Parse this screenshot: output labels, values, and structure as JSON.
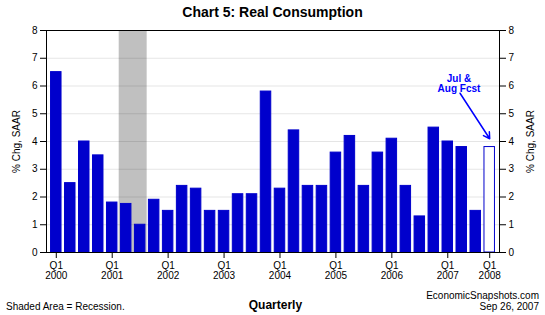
{
  "chart_data": {
    "type": "bar",
    "title": "Chart 5: Real Consumption",
    "xlabel": "Quarterly",
    "ylabel": "% Chg, SAAR",
    "y2label": "% Chg, SAAR",
    "footer_left": "Shaded Area = Recession.",
    "footer_right": "EconomicSnapshots.com\nSep 26, 2007",
    "categories": [
      "Q1\n2000",
      null,
      null,
      null,
      "Q1\n2001",
      null,
      null,
      null,
      "Q1\n2002",
      null,
      null,
      null,
      "Q1\n2003",
      null,
      null,
      null,
      "Q1\n2004",
      null,
      null,
      null,
      "Q1\n2005",
      null,
      null,
      null,
      "Q1\n2006",
      null,
      null,
      null,
      "Q1\n2007",
      null,
      null,
      "Q1\n2008"
    ],
    "values": [
      6.5,
      2.5,
      4.0,
      3.5,
      1.8,
      1.75,
      1.0,
      1.9,
      1.5,
      2.4,
      2.3,
      1.5,
      1.5,
      2.1,
      2.1,
      5.8,
      2.3,
      4.4,
      2.4,
      2.4,
      3.6,
      4.2,
      2.4,
      3.6,
      4.1,
      2.4,
      1.3,
      4.5,
      4.0,
      3.8,
      1.5,
      3.8
    ],
    "color": "#0000CC",
    "colors": [
      "#0000CC",
      "#0000CC",
      "#0000CC",
      "#0000CC",
      "#0000CC",
      "#0000CC",
      "#0000CC",
      "#0000CC",
      "#0000CC",
      "#0000CC",
      "#0000CC",
      "#0000CC",
      "#0000CC",
      "#0000CC",
      "#0000CC",
      "#0000CC",
      "#0000CC",
      "#0000CC",
      "#0000CC",
      "#0000CC",
      "#0000CC",
      "#0000CC",
      "#0000CC",
      "#0000CC",
      "#0000CC",
      "#0000CC",
      "#0000CC",
      "#0000CC",
      "#0000CC",
      "#0000CC",
      "#0000CC",
      "white"
    ],
    "shaded": {
      "start_index": 5,
      "end_index": 6,
      "color": "#C0C0C0"
    },
    "annotations": [
      {
        "text": "Jul &\nAug Fcst",
        "category_index": 31,
        "y": 4.1,
        "color": "blue"
      }
    ],
    "ylim": [
      0,
      8
    ],
    "yticks": [
      0,
      1,
      2,
      3,
      4,
      5,
      6,
      7,
      8
    ],
    "y2lim": [
      0,
      8
    ],
    "y2ticks": [
      0,
      1,
      2,
      3,
      4,
      5,
      6,
      7,
      8
    ],
    "grid": true
  }
}
